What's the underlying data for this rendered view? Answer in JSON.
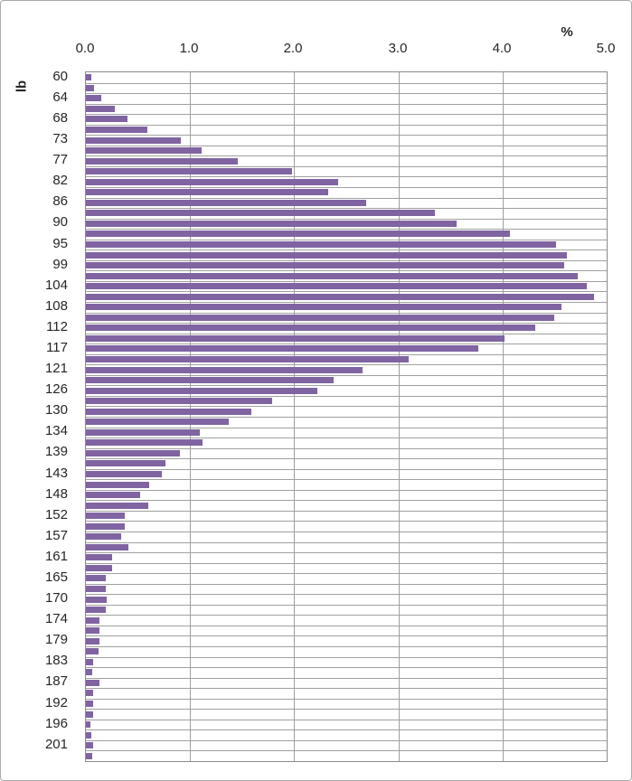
{
  "chart": {
    "percent_axis_title": "%",
    "weight_axis_title": "lb",
    "bar_color": "#8064A2",
    "gridline_color": "#a0a0a0",
    "plot_border_color": "#8c8c8c",
    "text_color": "#262626"
  },
  "chart_data": {
    "type": "bar",
    "orientation": "horizontal",
    "title": "",
    "xlabel": "%",
    "ylabel": "lb",
    "xlim": [
      0,
      5
    ],
    "x_tick_labels": [
      "0.0",
      "1.0",
      "2.0",
      "3.0",
      "4.0",
      "5.0"
    ],
    "grid": true,
    "legend": false,
    "y_tick_labels": [
      "60",
      "64",
      "68",
      "73",
      "77",
      "82",
      "86",
      "90",
      "95",
      "99",
      "104",
      "108",
      "112",
      "117",
      "121",
      "126",
      "130",
      "134",
      "139",
      "143",
      "148",
      "152",
      "157",
      "161",
      "165",
      "170",
      "174",
      "179",
      "183",
      "187",
      "192",
      "196",
      "201"
    ],
    "categories": [
      "60",
      "",
      "64",
      "",
      "68",
      "",
      "73",
      "",
      "77",
      "",
      "82",
      "",
      "86",
      "",
      "90",
      "",
      "95",
      "",
      "99",
      "",
      "104",
      "",
      "108",
      "",
      "112",
      "",
      "117",
      "",
      "121",
      "",
      "126",
      "",
      "130",
      "",
      "134",
      "",
      "139",
      "",
      "143",
      "",
      "148",
      "",
      "152",
      "",
      "157",
      "",
      "161",
      "",
      "165",
      "",
      "170",
      "",
      "174",
      "",
      "179",
      "",
      "183",
      "",
      "187",
      "",
      "192",
      "",
      "196",
      "",
      "201",
      ""
    ],
    "values": [
      0.05,
      0.08,
      0.15,
      0.28,
      0.4,
      0.59,
      0.91,
      1.11,
      1.46,
      1.98,
      2.42,
      2.33,
      2.69,
      3.35,
      3.56,
      4.07,
      4.51,
      4.62,
      4.59,
      4.72,
      4.81,
      4.88,
      4.57,
      4.5,
      4.31,
      4.02,
      3.77,
      3.1,
      2.66,
      2.38,
      2.22,
      1.79,
      1.59,
      1.37,
      1.09,
      1.12,
      0.9,
      0.76,
      0.73,
      0.61,
      0.52,
      0.6,
      0.37,
      0.37,
      0.34,
      0.41,
      0.25,
      0.25,
      0.19,
      0.19,
      0.2,
      0.19,
      0.13,
      0.13,
      0.13,
      0.12,
      0.07,
      0.06,
      0.13,
      0.07,
      0.07,
      0.07,
      0.04,
      0.05,
      0.07,
      0.06
    ]
  }
}
